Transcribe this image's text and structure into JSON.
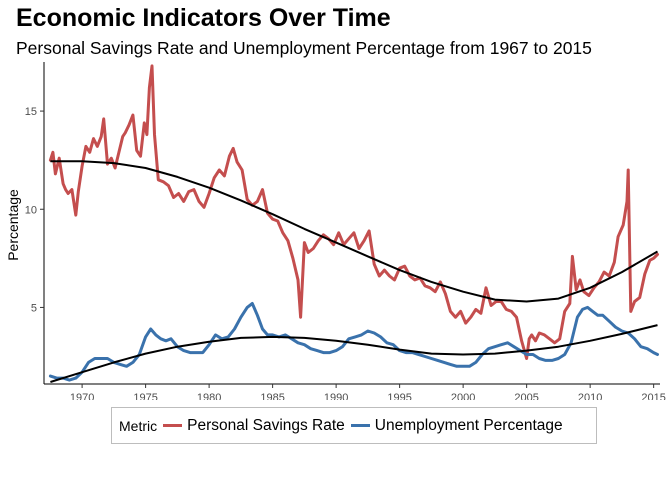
{
  "chart_data": {
    "type": "line",
    "title": "Economic Indicators Over Time",
    "subtitle": "Personal Savings Rate and Unemployment Percentage from 1967 to 2015",
    "xlabel": "",
    "ylabel": "Percentage",
    "xlim": [
      1967,
      2015.5
    ],
    "ylim": [
      1.1,
      17.5
    ],
    "x_ticks": [
      1970,
      1975,
      1980,
      1985,
      1990,
      1995,
      2000,
      2005,
      2010,
      2015
    ],
    "y_ticks": [
      5,
      10,
      15
    ],
    "grid": false,
    "legend": {
      "title": "Metric",
      "placement": "bottom",
      "entries": [
        "Personal Savings Rate",
        "Unemployment Percentage"
      ]
    },
    "series": [
      {
        "name": "Personal Savings Rate",
        "color": "#c44e4e",
        "x": [
          1967.5,
          1967.7,
          1967.9,
          1968.2,
          1968.5,
          1968.7,
          1968.9,
          1969.2,
          1969.5,
          1969.7,
          1970.0,
          1970.3,
          1970.6,
          1970.9,
          1971.2,
          1971.5,
          1971.7,
          1972.0,
          1972.3,
          1972.6,
          1972.9,
          1973.2,
          1973.4,
          1973.7,
          1974.0,
          1974.3,
          1974.6,
          1974.9,
          1975.1,
          1975.3,
          1975.5,
          1975.7,
          1976.0,
          1976.4,
          1976.8,
          1977.2,
          1977.6,
          1978.0,
          1978.4,
          1978.8,
          1979.2,
          1979.6,
          1980.0,
          1980.4,
          1980.8,
          1981.2,
          1981.6,
          1981.9,
          1982.2,
          1982.6,
          1983.0,
          1983.4,
          1983.8,
          1984.2,
          1984.6,
          1985.0,
          1985.4,
          1985.8,
          1986.2,
          1986.6,
          1987.0,
          1987.2,
          1987.5,
          1987.8,
          1988.2,
          1988.6,
          1989.0,
          1989.4,
          1989.8,
          1990.2,
          1990.6,
          1991.0,
          1991.4,
          1991.8,
          1992.2,
          1992.6,
          1993.0,
          1993.4,
          1993.8,
          1994.2,
          1994.6,
          1995.0,
          1995.4,
          1995.8,
          1996.2,
          1996.6,
          1997.0,
          1997.4,
          1997.8,
          1998.2,
          1998.6,
          1999.0,
          1999.4,
          1999.8,
          2000.2,
          2000.6,
          2001.0,
          2001.4,
          2001.8,
          2002.2,
          2002.6,
          2003.0,
          2003.4,
          2003.8,
          2004.2,
          2004.6,
          2005.0,
          2005.2,
          2005.4,
          2005.7,
          2006.0,
          2006.4,
          2006.8,
          2007.2,
          2007.6,
          2008.0,
          2008.4,
          2008.6,
          2008.9,
          2009.2,
          2009.5,
          2009.9,
          2010.3,
          2010.7,
          2011.1,
          2011.5,
          2011.9,
          2012.2,
          2012.6,
          2012.9,
          2013.0,
          2013.2,
          2013.5,
          2013.9,
          2014.3,
          2014.7,
          2015.0,
          2015.3
        ],
        "values": [
          12.5,
          12.9,
          11.8,
          12.6,
          11.3,
          11.0,
          10.8,
          11.0,
          9.7,
          10.9,
          12.2,
          13.2,
          12.9,
          13.6,
          13.2,
          13.7,
          14.6,
          12.3,
          12.6,
          12.1,
          12.9,
          13.7,
          13.9,
          14.3,
          14.8,
          13.0,
          12.7,
          14.4,
          13.8,
          16.2,
          17.3,
          13.8,
          11.5,
          11.4,
          11.2,
          10.6,
          10.8,
          10.4,
          10.9,
          11.0,
          10.4,
          10.1,
          10.8,
          11.6,
          12.0,
          11.7,
          12.7,
          13.1,
          12.4,
          12.0,
          10.5,
          10.2,
          10.4,
          11.0,
          9.8,
          9.5,
          9.4,
          8.8,
          8.4,
          7.5,
          6.4,
          4.5,
          8.3,
          7.8,
          8.0,
          8.4,
          8.7,
          8.5,
          8.2,
          8.8,
          8.2,
          8.5,
          8.8,
          8.0,
          8.4,
          8.9,
          7.2,
          6.6,
          6.9,
          6.6,
          6.4,
          7.0,
          7.1,
          6.6,
          6.4,
          6.5,
          6.1,
          6.0,
          5.8,
          6.3,
          5.7,
          4.8,
          4.5,
          4.8,
          4.2,
          4.5,
          4.9,
          4.7,
          6.0,
          5.1,
          5.3,
          5.3,
          4.9,
          4.8,
          4.5,
          3.3,
          2.4,
          3.4,
          3.6,
          3.3,
          3.7,
          3.6,
          3.4,
          3.2,
          3.4,
          4.8,
          5.2,
          7.6,
          5.9,
          6.4,
          5.8,
          5.6,
          6.0,
          6.3,
          6.8,
          6.6,
          7.3,
          8.6,
          9.2,
          10.4,
          12.0,
          4.8,
          5.3,
          5.5,
          6.7,
          7.4,
          7.5,
          7.7
        ]
      },
      {
        "name": "Unemployment Percentage",
        "color": "#3a72ac",
        "x": [
          1967.5,
          1968.0,
          1968.5,
          1969.0,
          1969.5,
          1970.0,
          1970.5,
          1971.0,
          1971.5,
          1972.0,
          1972.5,
          1973.0,
          1973.5,
          1974.0,
          1974.5,
          1975.0,
          1975.4,
          1975.8,
          1976.2,
          1976.6,
          1977.0,
          1977.5,
          1978.0,
          1978.5,
          1979.0,
          1979.5,
          1980.0,
          1980.5,
          1981.0,
          1981.5,
          1982.0,
          1982.5,
          1983.0,
          1983.4,
          1983.8,
          1984.2,
          1984.6,
          1985.0,
          1985.5,
          1986.0,
          1986.5,
          1987.0,
          1987.5,
          1988.0,
          1988.5,
          1989.0,
          1989.5,
          1990.0,
          1990.5,
          1991.0,
          1991.5,
          1992.0,
          1992.5,
          1993.0,
          1993.5,
          1994.0,
          1994.5,
          1995.0,
          1995.5,
          1996.0,
          1996.5,
          1997.0,
          1997.5,
          1998.0,
          1998.5,
          1999.0,
          1999.5,
          2000.0,
          2000.5,
          2001.0,
          2001.5,
          2002.0,
          2002.5,
          2003.0,
          2003.5,
          2004.0,
          2004.5,
          2005.0,
          2005.5,
          2006.0,
          2006.5,
          2007.0,
          2007.5,
          2008.0,
          2008.5,
          2009.0,
          2009.4,
          2009.8,
          2010.2,
          2010.6,
          2011.0,
          2011.5,
          2012.0,
          2012.5,
          2013.0,
          2013.5,
          2014.0,
          2014.5,
          2015.0,
          2015.3
        ],
        "values": [
          1.5,
          1.4,
          1.4,
          1.3,
          1.4,
          1.7,
          2.2,
          2.4,
          2.4,
          2.4,
          2.2,
          2.1,
          2.0,
          2.2,
          2.6,
          3.5,
          3.9,
          3.6,
          3.4,
          3.3,
          3.4,
          3.0,
          2.8,
          2.7,
          2.7,
          2.7,
          3.1,
          3.6,
          3.4,
          3.5,
          3.9,
          4.5,
          5.0,
          5.2,
          4.6,
          3.9,
          3.6,
          3.6,
          3.5,
          3.6,
          3.4,
          3.2,
          3.1,
          2.9,
          2.8,
          2.7,
          2.7,
          2.8,
          3.0,
          3.4,
          3.5,
          3.6,
          3.8,
          3.7,
          3.5,
          3.2,
          3.1,
          2.8,
          2.7,
          2.7,
          2.6,
          2.5,
          2.4,
          2.3,
          2.2,
          2.1,
          2.0,
          2.0,
          2.0,
          2.2,
          2.6,
          2.9,
          3.0,
          3.1,
          3.2,
          3.0,
          2.8,
          2.6,
          2.6,
          2.4,
          2.3,
          2.3,
          2.4,
          2.6,
          3.2,
          4.5,
          4.9,
          5.0,
          4.8,
          4.6,
          4.6,
          4.3,
          4.0,
          3.8,
          3.7,
          3.4,
          3.0,
          2.9,
          2.7,
          2.6
        ]
      }
    ],
    "trendlines": [
      {
        "series": "Personal Savings Rate",
        "color": "#000000",
        "x": [
          1967.5,
          1970,
          1972.5,
          1975,
          1977.5,
          1980,
          1982.5,
          1985,
          1987.5,
          1990,
          1992.5,
          1995,
          1997.5,
          2000,
          2002.5,
          2005,
          2007.5,
          2010,
          2012.5,
          2015.3
        ],
        "values": [
          12.45,
          12.45,
          12.35,
          12.1,
          11.65,
          11.1,
          10.45,
          9.75,
          9.0,
          8.3,
          7.6,
          6.9,
          6.3,
          5.8,
          5.4,
          5.3,
          5.45,
          6.0,
          6.8,
          7.85
        ]
      },
      {
        "series": "Unemployment Percentage",
        "color": "#000000",
        "x": [
          1967.5,
          1970,
          1972.5,
          1975,
          1977.5,
          1980,
          1982.5,
          1985,
          1987.5,
          1990,
          1992.5,
          1995,
          1997.5,
          2000,
          2002.5,
          2005,
          2007.5,
          2010,
          2012.5,
          2015.3
        ],
        "values": [
          1.2,
          1.7,
          2.2,
          2.65,
          3.0,
          3.25,
          3.45,
          3.5,
          3.45,
          3.3,
          3.1,
          2.85,
          2.65,
          2.6,
          2.65,
          2.8,
          3.0,
          3.3,
          3.65,
          4.1
        ]
      }
    ]
  }
}
